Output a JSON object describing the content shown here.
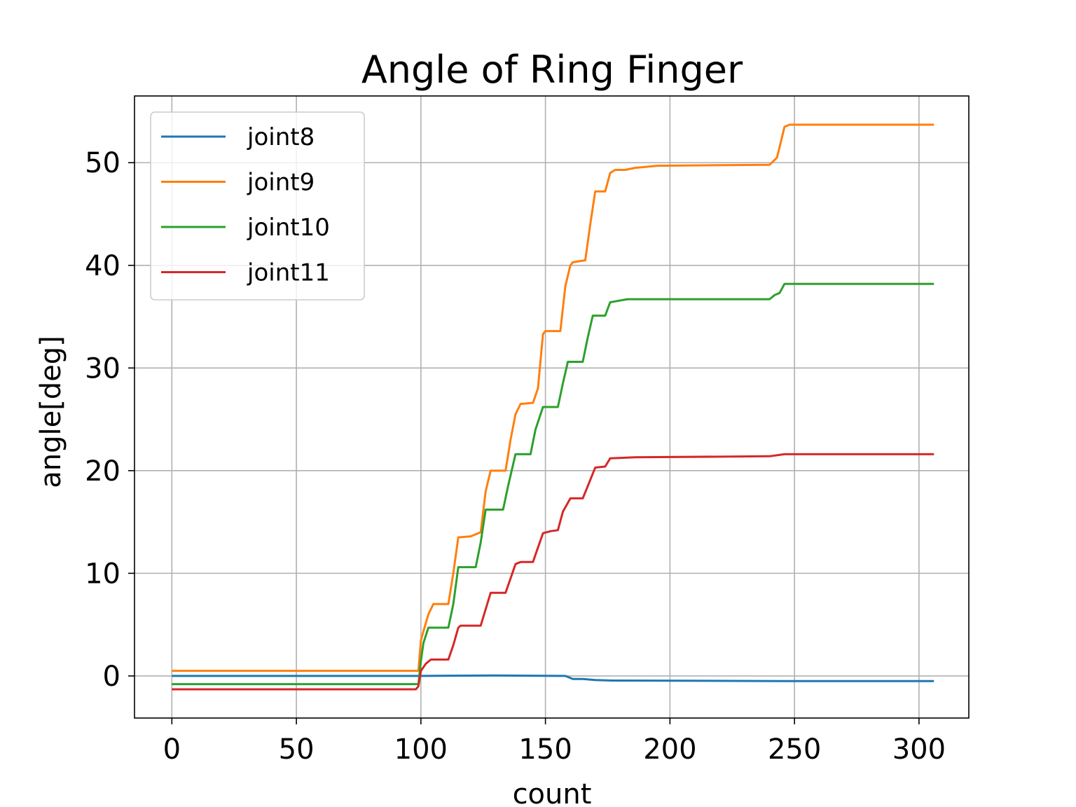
{
  "chart_data": {
    "type": "line",
    "title": "Angle of Ring Finger",
    "xlabel": "count",
    "ylabel": "angle[deg]",
    "xlim": [
      -15,
      320
    ],
    "ylim": [
      -4.1,
      56.5
    ],
    "xticks": [
      0,
      50,
      100,
      150,
      200,
      250,
      300
    ],
    "yticks": [
      0,
      10,
      20,
      30,
      40,
      50
    ],
    "grid": true,
    "legend_position": "upper-left",
    "series": [
      {
        "name": "joint8",
        "color": "#1f77b4",
        "points": [
          [
            0,
            0
          ],
          [
            99,
            0
          ],
          [
            100,
            0
          ],
          [
            130,
            0.05
          ],
          [
            158,
            0
          ],
          [
            161,
            -0.3
          ],
          [
            165,
            -0.3
          ],
          [
            170,
            -0.4
          ],
          [
            177,
            -0.45
          ],
          [
            246,
            -0.5
          ],
          [
            306,
            -0.5
          ]
        ]
      },
      {
        "name": "joint9",
        "color": "#ff7f0e",
        "points": [
          [
            0,
            0.5
          ],
          [
            99,
            0.5
          ],
          [
            100,
            3.5
          ],
          [
            103,
            6
          ],
          [
            105,
            7
          ],
          [
            111,
            7
          ],
          [
            113,
            10
          ],
          [
            115,
            13.5
          ],
          [
            120,
            13.6
          ],
          [
            124,
            14
          ],
          [
            126,
            18
          ],
          [
            128,
            20
          ],
          [
            134,
            20
          ],
          [
            136,
            23
          ],
          [
            138,
            25.5
          ],
          [
            140,
            26.5
          ],
          [
            145,
            26.6
          ],
          [
            147,
            28
          ],
          [
            149,
            33.3
          ],
          [
            150,
            33.6
          ],
          [
            156,
            33.6
          ],
          [
            158,
            38
          ],
          [
            160,
            40
          ],
          [
            161,
            40.3
          ],
          [
            166,
            40.5
          ],
          [
            168,
            44
          ],
          [
            170,
            47.2
          ],
          [
            174,
            47.2
          ],
          [
            176,
            49
          ],
          [
            178,
            49.3
          ],
          [
            182,
            49.3
          ],
          [
            186,
            49.5
          ],
          [
            195,
            49.7
          ],
          [
            240,
            49.8
          ],
          [
            243,
            50.5
          ],
          [
            246,
            53.5
          ],
          [
            248,
            53.7
          ],
          [
            306,
            53.7
          ]
        ]
      },
      {
        "name": "joint10",
        "color": "#2ca02c",
        "points": [
          [
            0,
            -0.8
          ],
          [
            99,
            -0.8
          ],
          [
            100,
            1.5
          ],
          [
            101,
            3.2
          ],
          [
            103,
            4.7
          ],
          [
            111,
            4.7
          ],
          [
            113,
            7
          ],
          [
            115,
            10.6
          ],
          [
            122,
            10.6
          ],
          [
            124,
            13
          ],
          [
            126,
            16.2
          ],
          [
            133,
            16.2
          ],
          [
            135,
            18.5
          ],
          [
            138,
            21.6
          ],
          [
            144,
            21.6
          ],
          [
            146,
            24
          ],
          [
            149,
            26.2
          ],
          [
            155,
            26.2
          ],
          [
            157,
            28.5
          ],
          [
            159,
            30.6
          ],
          [
            165,
            30.6
          ],
          [
            167,
            33
          ],
          [
            169,
            35.1
          ],
          [
            174,
            35.1
          ],
          [
            176,
            36.4
          ],
          [
            183,
            36.7
          ],
          [
            240,
            36.7
          ],
          [
            242,
            37.1
          ],
          [
            244,
            37.3
          ],
          [
            246,
            38.2
          ],
          [
            306,
            38.2
          ]
        ]
      },
      {
        "name": "joint11",
        "color": "#d62728",
        "points": [
          [
            0,
            -1.3
          ],
          [
            98,
            -1.3
          ],
          [
            99,
            -1
          ],
          [
            100,
            0.5
          ],
          [
            102,
            1.2
          ],
          [
            104,
            1.6
          ],
          [
            111,
            1.6
          ],
          [
            113,
            3
          ],
          [
            115,
            4.7
          ],
          [
            116,
            4.9
          ],
          [
            124,
            4.9
          ],
          [
            126,
            6.5
          ],
          [
            128,
            8.1
          ],
          [
            134,
            8.1
          ],
          [
            136,
            9.5
          ],
          [
            138,
            10.9
          ],
          [
            140,
            11.1
          ],
          [
            145,
            11.1
          ],
          [
            147,
            12.5
          ],
          [
            149,
            13.9
          ],
          [
            152,
            14.1
          ],
          [
            155,
            14.2
          ],
          [
            157,
            16
          ],
          [
            160,
            17.3
          ],
          [
            165,
            17.3
          ],
          [
            167,
            18.5
          ],
          [
            170,
            20.3
          ],
          [
            174,
            20.4
          ],
          [
            176,
            21.2
          ],
          [
            186,
            21.3
          ],
          [
            240,
            21.4
          ],
          [
            246,
            21.6
          ],
          [
            306,
            21.6
          ]
        ]
      }
    ]
  }
}
